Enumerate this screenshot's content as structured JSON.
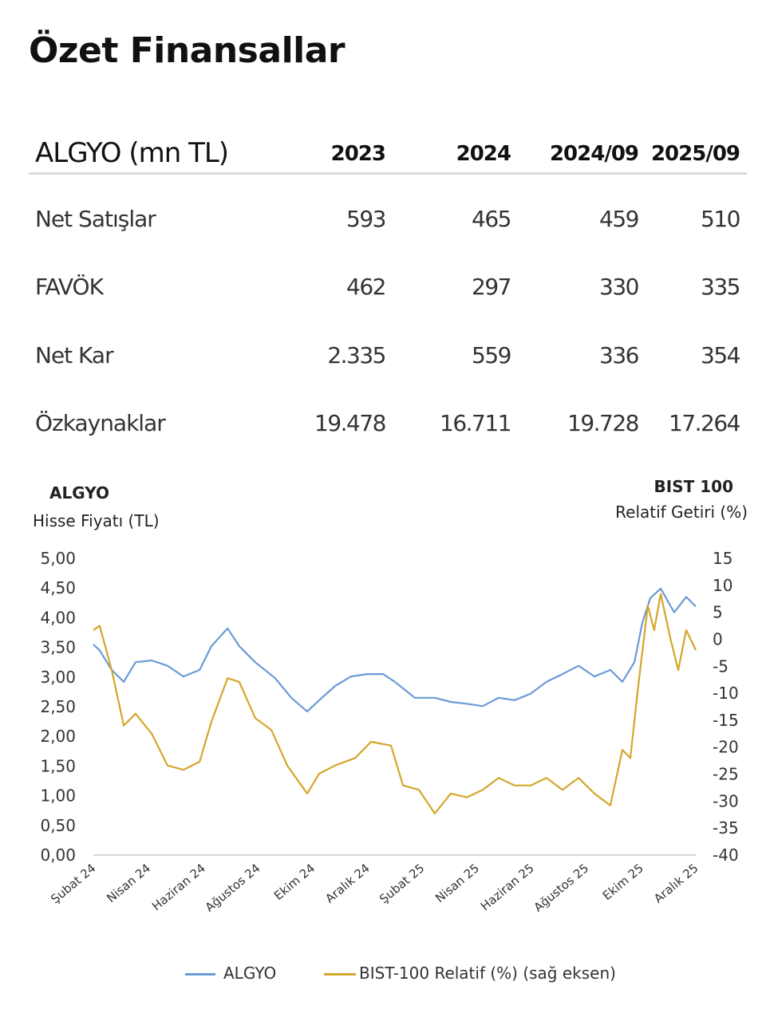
{
  "page_title": "Özet Finansallar",
  "table": {
    "header_label": "ALGYO (mn TL)",
    "columns": [
      "2023",
      "2024",
      "2024/09",
      "2025/09"
    ],
    "rows": [
      {
        "label": "Net Satışlar",
        "values": [
          "593",
          "465",
          "459",
          "510"
        ]
      },
      {
        "label": "FAVÖK",
        "values": [
          "462",
          "297",
          "330",
          "335"
        ]
      },
      {
        "label": "Net Kar",
        "values": [
          "2.335",
          "559",
          "336",
          "354"
        ]
      },
      {
        "label": "Özkaynaklar",
        "values": [
          "19.478",
          "16.711",
          "19.728",
          "17.264"
        ]
      }
    ]
  },
  "chart_labels": {
    "left_title": "ALGYO",
    "left_subtitle": "Hisse Fiyatı (TL)",
    "right_title": "BIST 100",
    "right_subtitle": "Relatif Getiri (%)"
  },
  "chart_data": {
    "type": "line",
    "xlabel": "",
    "x_unit": "months since Şubat 24",
    "x_ticks": [
      0,
      2,
      4,
      6,
      8,
      10,
      12,
      14,
      16,
      18,
      20,
      22
    ],
    "x_tick_labels": [
      "Şubat 24",
      "Nisan 24",
      "Haziran 24",
      "Ağustos 24",
      "Ekim 24",
      "Aralık 24",
      "Şubat 25",
      "Nisan 25",
      "Haziran 25",
      "Ağustos 25",
      "Ekim 25",
      "Aralık 25"
    ],
    "xlim": [
      0,
      22
    ],
    "y_left": {
      "label": "Hisse Fiyatı (TL)",
      "lim": [
        0,
        5
      ],
      "ticks": [
        "0,00",
        "0,50",
        "1,00",
        "1,50",
        "2,00",
        "2,50",
        "3,00",
        "3,50",
        "4,00",
        "4,50",
        "5,00"
      ]
    },
    "y_right": {
      "label": "Relatif Getiri (%)",
      "lim": [
        -40,
        15
      ],
      "ticks": [
        "-40",
        "-35",
        "-30",
        "-25",
        "-20",
        "-15",
        "-10",
        "-5",
        "0",
        "5",
        "10",
        "15"
      ]
    },
    "grid": false,
    "legend_position": "bottom",
    "series": [
      {
        "name": "ALGYO",
        "axis": "left",
        "color": "#6b9ad6",
        "x": [
          0,
          0.23,
          0.67,
          1.11,
          1.54,
          2.13,
          2.71,
          3.29,
          3.88,
          4.31,
          4.9,
          5.33,
          5.91,
          6.64,
          7.23,
          7.81,
          8.25,
          8.83,
          9.41,
          9.99,
          10.58,
          11.01,
          11.74,
          12.47,
          13.05,
          13.64,
          14.22,
          14.8,
          15.38,
          15.97,
          16.55,
          17.13,
          17.72,
          18.3,
          18.88,
          19.32,
          19.76,
          20.05,
          20.34,
          20.72,
          21.21,
          21.65,
          22.0
        ],
        "values": [
          3.55,
          3.45,
          3.12,
          2.92,
          3.25,
          3.28,
          3.19,
          3.01,
          3.12,
          3.52,
          3.82,
          3.52,
          3.25,
          2.98,
          2.65,
          2.42,
          2.61,
          2.85,
          3.01,
          3.05,
          3.05,
          2.92,
          2.65,
          2.65,
          2.58,
          2.55,
          2.51,
          2.65,
          2.61,
          2.72,
          2.92,
          3.05,
          3.19,
          3.01,
          3.12,
          2.92,
          3.25,
          3.92,
          4.33,
          4.49,
          4.09,
          4.35,
          4.19
        ]
      },
      {
        "name": "BIST-100 Relatif (%) (sağ eksen)",
        "axis": "right",
        "color": "#d4a62a",
        "x": [
          0,
          0.23,
          0.67,
          1.11,
          1.54,
          2.13,
          2.71,
          3.29,
          3.88,
          4.31,
          4.9,
          5.33,
          5.91,
          6.5,
          7.08,
          7.81,
          8.25,
          8.83,
          9.56,
          10.14,
          10.87,
          11.31,
          11.89,
          12.47,
          13.05,
          13.64,
          14.22,
          14.8,
          15.38,
          15.97,
          16.55,
          17.13,
          17.72,
          18.3,
          18.88,
          19.32,
          19.61,
          19.9,
          20.25,
          20.48,
          20.72,
          21.07,
          21.36,
          21.65,
          22.0
        ],
        "values": [
          1.7,
          2.5,
          -5.7,
          -16.0,
          -13.8,
          -17.5,
          -23.4,
          -24.2,
          -22.7,
          -15.3,
          -7.2,
          -7.9,
          -14.6,
          -16.8,
          -23.4,
          -28.6,
          -24.9,
          -23.4,
          -22.0,
          -19.0,
          -19.7,
          -27.1,
          -27.9,
          -32.3,
          -28.6,
          -29.3,
          -27.9,
          -25.7,
          -27.1,
          -27.1,
          -25.7,
          -27.9,
          -25.7,
          -28.6,
          -30.8,
          -20.5,
          -22.0,
          -8.6,
          6.2,
          1.7,
          8.4,
          0.2,
          -5.7,
          1.7,
          -2.0
        ]
      }
    ]
  }
}
